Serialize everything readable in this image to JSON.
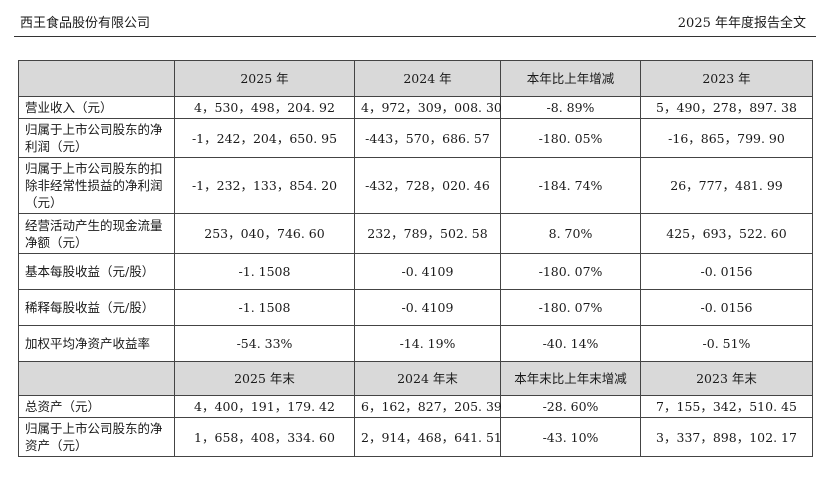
{
  "header": {
    "company": "西王食品股份有限公司",
    "report_title": "2025 年年度报告全文"
  },
  "table": {
    "head1": [
      "2025 年",
      "2024 年",
      "本年比上年增减",
      "2023 年"
    ],
    "rows1": [
      {
        "label": "营业收入（元）",
        "values": [
          "4，530，498，204. 92",
          "4，972，309，008. 30",
          "-8. 89%",
          "5，490，278，897. 38"
        ]
      },
      {
        "label": "归属于上市公司股东的净利润（元）",
        "values": [
          "-1，242，204，650. 95",
          "-443，570，686. 57",
          "-180. 05%",
          "-16，865，799. 90"
        ]
      },
      {
        "label": "归属于上市公司股东的扣除非经常性损益的净利润（元）",
        "values": [
          "-1，232，133，854. 20",
          "-432，728，020. 46",
          "-184. 74%",
          "26，777，481. 99"
        ]
      },
      {
        "label": "经营活动产生的现金流量净额（元）",
        "values": [
          "253，040，746. 60",
          "232，789，502. 58",
          "8. 70%",
          "425，693，522. 60"
        ]
      },
      {
        "label": "基本每股收益（元/股）",
        "values": [
          "-1. 1508",
          "-0. 4109",
          "-180. 07%",
          "-0. 0156"
        ]
      },
      {
        "label": "稀释每股收益（元/股）",
        "values": [
          "-1. 1508",
          "-0. 4109",
          "-180. 07%",
          "-0. 0156"
        ]
      },
      {
        "label": "加权平均净资产收益率",
        "values": [
          "-54. 33%",
          "-14. 19%",
          "-40. 14%",
          "-0. 51%"
        ]
      }
    ],
    "head2": [
      "2025 年末",
      "2024 年末",
      "本年末比上年末增减",
      "2023 年末"
    ],
    "rows2": [
      {
        "label": "总资产（元）",
        "values": [
          "4，400，191，179. 42",
          "6，162，827，205. 39",
          "-28. 60%",
          "7，155，342，510. 45"
        ]
      },
      {
        "label": "归属于上市公司股东的净资产（元）",
        "values": [
          "1，658，408，334. 60",
          "2，914，468，641. 51",
          "-43. 10%",
          "3，337，898，102. 17"
        ]
      }
    ]
  }
}
